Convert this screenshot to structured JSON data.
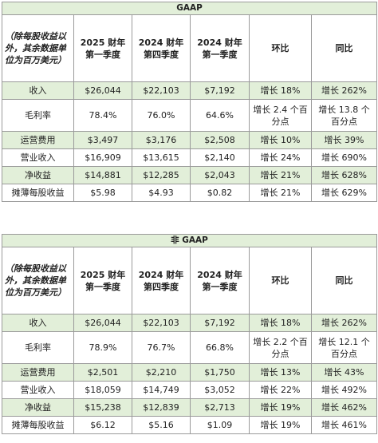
{
  "tables": [
    {
      "title": "GAAP",
      "header": [
        "（除每股收益以外，其余数据单位为百万美元）",
        "2025 财年第一季度",
        "2024 财年第四季度",
        "2024 财年第一季度",
        "环比",
        "同比"
      ],
      "rows": [
        [
          "收入",
          "$26,044",
          "$22,103",
          "$7,192",
          "增长 18%",
          "增长 262%"
        ],
        [
          "毛利率",
          "78.4%",
          "76.0%",
          "64.6%",
          "增长 2.4 个百分点",
          "增长 13.8 个百分点"
        ],
        [
          "运营费用",
          "$3,497",
          "$3,176",
          "$2,508",
          "增长 10%",
          "增长 39%"
        ],
        [
          "营业收入",
          "$16,909",
          "$13,615",
          "$2,140",
          "增长 24%",
          "增长 690%"
        ],
        [
          "净收益",
          "$14,881",
          "$12,285",
          "$2,043",
          "增长 21%",
          "增长 628%"
        ],
        [
          "摊薄每股收益",
          "$5.98",
          "$4.93",
          "$0.82",
          "增长 21%",
          "增长 629%"
        ]
      ]
    },
    {
      "title": "非 GAAP",
      "header": [
        "（除每股收益以外，其余数据单位为百万美元）",
        "2025 财年第一季度",
        "2024 财年第四季度",
        "2024 财年第一季度",
        "环比",
        "同比"
      ],
      "rows": [
        [
          "收入",
          "$26,044",
          "$22,103",
          "$7,192",
          "增长 18%",
          "增长 262%"
        ],
        [
          "毛利率",
          "78.9%",
          "76.7%",
          "66.8%",
          "增长 2.2 个百分点",
          "增长 12.1 个百分点"
        ],
        [
          "运营费用",
          "$2,501",
          "$2,210",
          "$1,750",
          "增长 13%",
          "增长 43%"
        ],
        [
          "营业收入",
          "$18,059",
          "$14,749",
          "$3,052",
          "增长 22%",
          "增长 492%"
        ],
        [
          "净收益",
          "$15,238",
          "$12,839",
          "$2,713",
          "增长 19%",
          "增长 462%"
        ],
        [
          "摊薄每股收益",
          "$6.12",
          "$5.16",
          "$1.09",
          "增长 19%",
          "增长 461%"
        ]
      ]
    }
  ]
}
